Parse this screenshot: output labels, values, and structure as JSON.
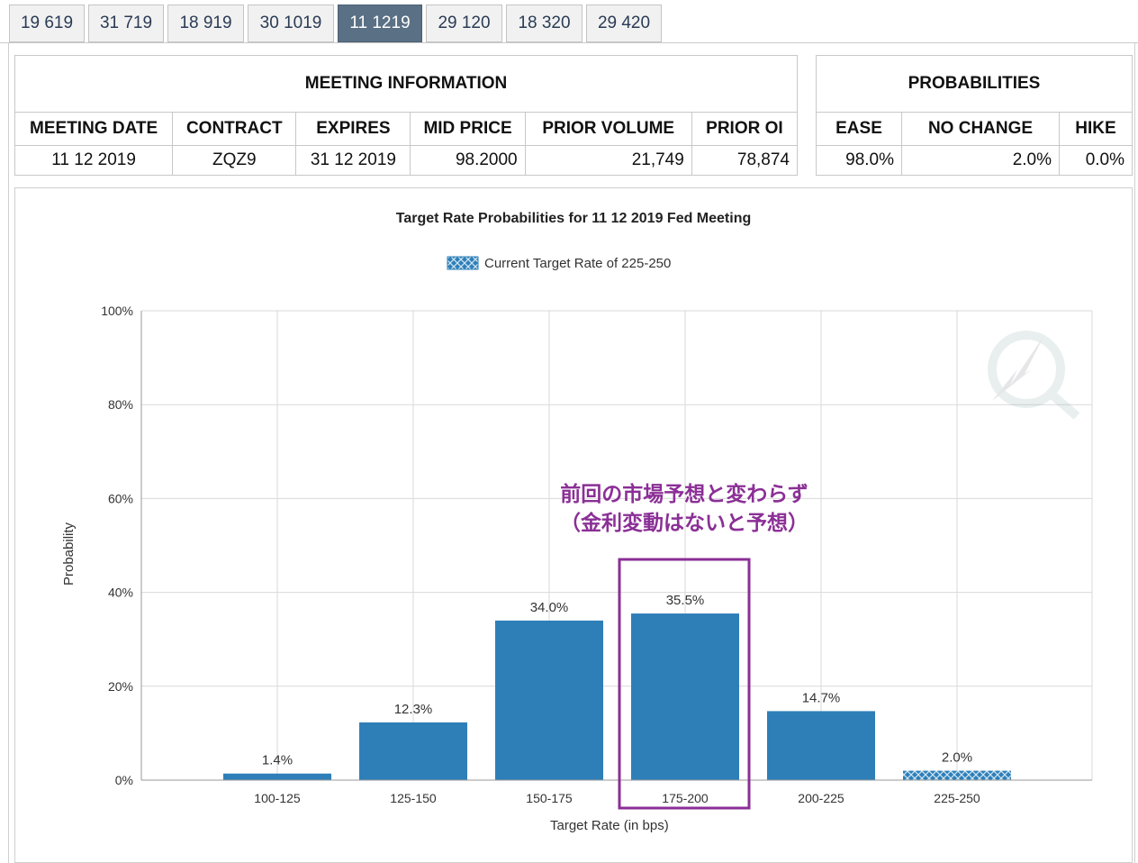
{
  "tabs": [
    {
      "label": "19 619",
      "active": false
    },
    {
      "label": "31 719",
      "active": false
    },
    {
      "label": "18 919",
      "active": false
    },
    {
      "label": "30 1019",
      "active": false
    },
    {
      "label": "11 1219",
      "active": true
    },
    {
      "label": "29 120",
      "active": false
    },
    {
      "label": "18 320",
      "active": false
    },
    {
      "label": "29 420",
      "active": false
    }
  ],
  "meeting_info": {
    "header": "MEETING INFORMATION",
    "columns": [
      "MEETING DATE",
      "CONTRACT",
      "EXPIRES",
      "MID PRICE",
      "PRIOR VOLUME",
      "PRIOR OI"
    ],
    "values": [
      "11 12 2019",
      "ZQZ9",
      "31 12 2019",
      "98.2000",
      "21,749",
      "78,874"
    ]
  },
  "probabilities": {
    "header": "PROBABILITIES",
    "columns": [
      "EASE",
      "NO CHANGE",
      "HIKE"
    ],
    "values": [
      "98.0%",
      "2.0%",
      "0.0%"
    ]
  },
  "annotation": {
    "line1": "前回の市場予想と変わらず",
    "line2": "（金利変動はないと予想）",
    "color": "#8b2f96"
  },
  "colors": {
    "bar": "#2e7fb8",
    "current_bar": "#2e7fb8",
    "grid": "#d9d9d9",
    "active_tab": "#5a7084"
  },
  "chart_data": {
    "type": "bar",
    "title": "Target Rate Probabilities for 11 12 2019 Fed Meeting",
    "legend": {
      "label": "Current Target Rate of 225-250",
      "position": "top"
    },
    "xlabel": "Target Rate (in bps)",
    "ylabel": "Probability",
    "ylim": [
      0,
      100
    ],
    "yticks": [
      "0%",
      "20%",
      "40%",
      "60%",
      "80%",
      "100%"
    ],
    "grid": true,
    "categories": [
      "100-125",
      "125-150",
      "150-175",
      "175-200",
      "200-225",
      "225-250"
    ],
    "values": [
      1.4,
      12.3,
      34.0,
      35.5,
      14.7,
      2.0
    ],
    "data_labels": [
      "1.4%",
      "12.3%",
      "34.0%",
      "35.5%",
      "14.7%",
      "2.0%"
    ],
    "current_category": "225-250",
    "highlighted_category": "175-200"
  }
}
